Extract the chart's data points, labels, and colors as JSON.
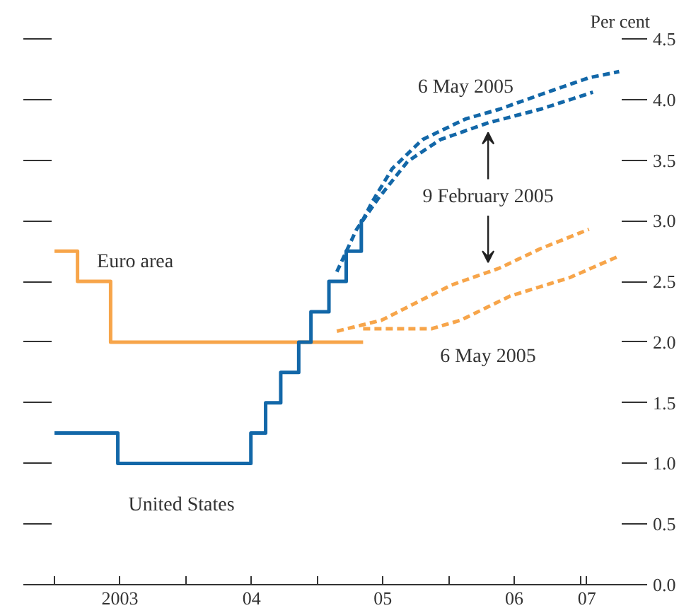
{
  "chart_data": {
    "type": "line",
    "ylabel": "Per cent",
    "xlim": [
      "2002-12-24",
      "2007-04-27"
    ],
    "xticks": [
      {
        "value": "2003-01-01",
        "label": null
      },
      {
        "value": "2003-07-02",
        "label": "2003"
      },
      {
        "value": "2004-01-01",
        "label": null
      },
      {
        "value": "2004-07-02",
        "label": "04"
      },
      {
        "value": "2005-01-01",
        "label": null
      },
      {
        "value": "2005-07-02",
        "label": "05"
      },
      {
        "value": "2006-01-01",
        "label": null
      },
      {
        "value": "2006-07-02",
        "label": "06"
      },
      {
        "value": "2007-01-01",
        "label": null
      },
      {
        "value": "2007-01-20",
        "label": "07"
      }
    ],
    "ylim": [
      0,
      4.5
    ],
    "yticks": [
      {
        "value": 0,
        "label": "0.0"
      },
      0.5,
      {
        "value": 1,
        "label": "1.0"
      },
      1.5,
      {
        "value": 2,
        "label": "2.0"
      },
      2.5,
      {
        "value": 3,
        "label": "3.0"
      },
      3.5,
      {
        "value": 4,
        "label": "4.0"
      },
      4.5
    ],
    "grid": false,
    "series": [
      {
        "name": "Euro area",
        "type": "step",
        "color": "#f7a54a",
        "line_style": "solid",
        "x": [
          "2003-01-01",
          "2003-03-06",
          "2003-06-06",
          "2005-05-08"
        ],
        "values": [
          2.75,
          2.5,
          2.0,
          2.0
        ]
      },
      {
        "name": "United States",
        "type": "step",
        "color": "#1267a8",
        "line_style": "solid",
        "x": [
          "2003-01-01",
          "2003-06-26",
          "2004-06-30",
          "2004-08-10",
          "2004-09-21",
          "2004-11-10",
          "2004-12-14",
          "2005-02-02",
          "2005-03-22",
          "2005-05-03",
          "2005-05-08"
        ],
        "values": [
          1.25,
          1.0,
          1.25,
          1.5,
          1.75,
          2.0,
          2.25,
          2.5,
          2.75,
          3.0,
          3.0
        ]
      },
      {
        "name": "6 May 2005",
        "color": "#1267a8",
        "line_style": "dashed",
        "x": [
          "2005-05-06",
          "2005-06-03",
          "2005-07-28",
          "2005-10-20",
          "2006-02-17",
          "2006-05-22",
          "2006-09-13",
          "2007-01-26",
          "2007-04-20"
        ],
        "values": [
          3.0,
          3.16,
          3.43,
          3.67,
          3.84,
          3.92,
          4.04,
          4.18,
          4.23
        ]
      },
      {
        "color": "#1267a8",
        "line_style": "dashed",
        "x": [
          "2005-02-24",
          "2005-04-20",
          "2005-06-18",
          "2005-09-09",
          "2005-12-09",
          "2006-04-23",
          "2006-09-13",
          "2007-02-06"
        ],
        "values": [
          2.58,
          2.93,
          3.18,
          3.49,
          3.67,
          3.81,
          3.92,
          4.06
        ]
      },
      {
        "color": "#f7a54a",
        "line_style": "dashed",
        "x": [
          "2005-02-24",
          "2005-06-28",
          "2006-01-08",
          "2006-05-22",
          "2006-09-13",
          "2007-01-26"
        ],
        "values": [
          2.09,
          2.18,
          2.47,
          2.61,
          2.77,
          2.93
        ]
      },
      {
        "name": "6 May 2005",
        "color": "#f7a54a",
        "line_style": "dashed",
        "x": [
          "2005-05-08",
          "2005-11-14",
          "2006-02-03",
          "2006-06-21",
          "2006-12-02",
          "2007-04-20"
        ],
        "values": [
          2.11,
          2.11,
          2.18,
          2.38,
          2.53,
          2.71
        ]
      }
    ],
    "annotations": [
      "9 February 2005"
    ]
  }
}
